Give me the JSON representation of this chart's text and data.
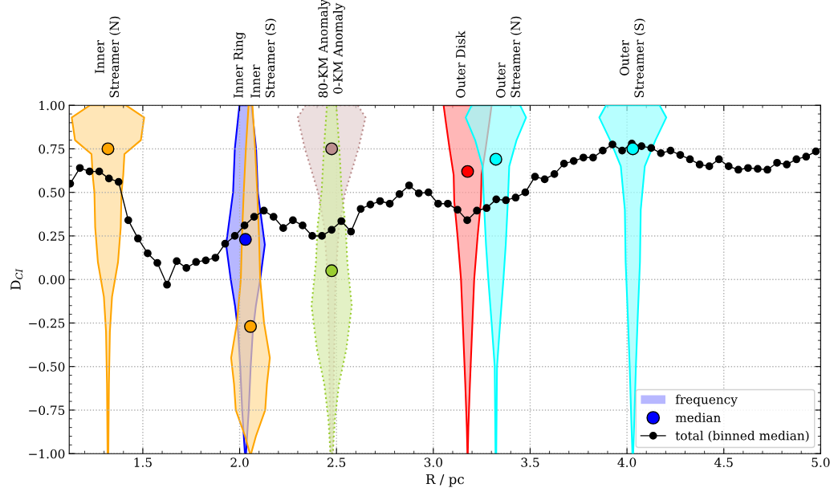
{
  "chart_data": {
    "type": "line",
    "xlabel": "R / pc",
    "ylabel": "D$_{CI}$",
    "xlim": [
      1.12,
      5.0
    ],
    "xticks": [
      1.5,
      {
        "value": 2.0,
        "label": "2.0"
      },
      2.5,
      {
        "value": 3.0,
        "label": "3.0"
      },
      3.5,
      {
        "value": 4.0,
        "label": "4.0"
      },
      4.5,
      {
        "value": 5.0,
        "label": "5.0"
      }
    ],
    "ylim": [
      -1.0,
      1.0
    ],
    "yticks": [
      {
        "value": -1.0,
        "label": "−1.00"
      },
      {
        "value": -0.75,
        "label": "−0.75"
      },
      {
        "value": -0.5,
        "label": "−0.50"
      },
      {
        "value": -0.25,
        "label": "−0.25"
      },
      {
        "value": 0.0,
        "label": "0.00"
      },
      {
        "value": 0.25,
        "label": "0.25"
      },
      {
        "value": 0.5,
        "label": "0.50"
      },
      {
        "value": 0.75,
        "label": "0.75"
      },
      {
        "value": 1.0,
        "label": "1.00"
      }
    ],
    "annotations": [
      "Inner\nStreamer (N)",
      "Inner Ring",
      "Inner\nStreamer (S)",
      "80-KM Anomaly\n0-KM Anomaly",
      "Outer Disk",
      "Outer\nStreamer (N)",
      "Outer\nStreamer (S)"
    ],
    "grid": true,
    "legend": "bottom right",
    "series": [
      {
        "type": "area",
        "color": "#ffa500",
        "line_style": "solid",
        "x": [
          1.413,
          1.507,
          1.49,
          1.405,
          1.399,
          1.39,
          1.386,
          1.372,
          1.341,
          1.33,
          1.325,
          1.322,
          1.318,
          1.315,
          1.31,
          1.299,
          1.268,
          1.254,
          1.25,
          1.241,
          1.235,
          1.15,
          1.133,
          1.227
        ],
        "values": [
          1.0,
          0.93,
          0.8,
          0.72,
          0.6,
          0.5,
          0.3,
          0.1,
          -0.1,
          -0.3,
          -0.6,
          -1.0,
          -1.0,
          -0.6,
          -0.3,
          -0.1,
          0.1,
          0.3,
          0.5,
          0.6,
          0.72,
          0.8,
          0.93,
          1.0
        ]
      },
      {
        "type": "area",
        "name": "frequency",
        "color": "#0000ff",
        "line_style": "solid",
        "x": [
          2.061,
          2.085,
          2.094,
          2.118,
          2.13,
          2.106,
          2.084,
          2.068,
          2.057,
          2.047,
          2.033,
          2.027,
          2.013,
          2.003,
          1.992,
          1.976,
          1.954,
          1.93,
          1.942,
          1.966,
          1.975,
          1.999
        ],
        "values": [
          1.0,
          0.75,
          0.5,
          0.3,
          0.2,
          0.0,
          -0.15,
          -0.3,
          -0.5,
          -0.75,
          -1.0,
          -1.0,
          -0.75,
          -0.5,
          -0.3,
          -0.15,
          0.0,
          0.2,
          0.3,
          0.5,
          0.75,
          1.0
        ]
      },
      {
        "type": "area",
        "color": "#ffa500",
        "line_style": "solid",
        "x": [
          2.066,
          2.08,
          2.091,
          2.1,
          2.106,
          2.126,
          2.156,
          2.141,
          2.132,
          2.084,
          2.059,
          2.053,
          2.028,
          1.98,
          1.971,
          1.956,
          1.986,
          2.006,
          2.012,
          2.021,
          2.032,
          2.046
        ],
        "values": [
          1.0,
          0.75,
          0.5,
          0.25,
          0.0,
          -0.25,
          -0.45,
          -0.6,
          -0.75,
          -0.9,
          -1.0,
          -1.0,
          -0.9,
          -0.75,
          -0.6,
          -0.45,
          -0.25,
          0.0,
          0.25,
          0.5,
          0.75,
          1.0
        ]
      },
      {
        "type": "area",
        "color": "#bc8f8f",
        "line_style": "dotted",
        "x": [
          2.61,
          2.65,
          2.613,
          2.545,
          2.513,
          2.495,
          2.487,
          2.481,
          2.469,
          2.463,
          2.455,
          2.437,
          2.405,
          2.337,
          2.3,
          2.34
        ],
        "values": [
          1.0,
          0.93,
          0.75,
          0.5,
          0.3,
          0.0,
          -0.5,
          -1.0,
          -1.0,
          -0.5,
          0.0,
          0.3,
          0.5,
          0.75,
          0.93,
          1.0
        ]
      },
      {
        "type": "area",
        "color": "#9acd32",
        "line_style": "dotted",
        "x": [
          2.499,
          2.515,
          2.527,
          2.548,
          2.556,
          2.579,
          2.551,
          2.513,
          2.492,
          2.481,
          2.469,
          2.458,
          2.437,
          2.399,
          2.371,
          2.394,
          2.402,
          2.423,
          2.435,
          2.451
        ],
        "values": [
          1.0,
          0.75,
          0.5,
          0.3,
          0.1,
          -0.15,
          -0.4,
          -0.6,
          -0.8,
          -1.0,
          -1.0,
          -0.8,
          -0.6,
          -0.4,
          -0.15,
          0.1,
          0.3,
          0.5,
          0.75,
          1.0
        ]
      },
      {
        "type": "area",
        "color": "#ff0000",
        "line_style": "solid",
        "x": [
          3.301,
          3.289,
          3.27,
          3.249,
          3.246,
          3.229,
          3.211,
          3.2,
          3.189,
          3.181,
          3.178,
          3.176,
          3.173,
          3.165,
          3.154,
          3.143,
          3.125,
          3.108,
          3.105,
          3.084,
          3.065,
          3.053
        ],
        "values": [
          1.0,
          0.9,
          0.75,
          0.6,
          0.45,
          0.25,
          0.0,
          -0.3,
          -0.6,
          -0.85,
          -1.0,
          -1.0,
          -0.85,
          -0.6,
          -0.3,
          0.0,
          0.25,
          0.45,
          0.6,
          0.75,
          0.9,
          1.0
        ]
      },
      {
        "type": "area",
        "color": "#00ffff",
        "line_style": "solid",
        "x": [
          3.448,
          3.479,
          3.43,
          3.392,
          3.385,
          3.374,
          3.362,
          3.345,
          3.329,
          3.325,
          3.321,
          3.317,
          3.301,
          3.284,
          3.272,
          3.261,
          3.254,
          3.216,
          3.167,
          3.198
        ],
        "values": [
          1.0,
          0.93,
          0.8,
          0.65,
          0.45,
          0.2,
          0.0,
          -0.25,
          -0.5,
          -1.0,
          -1.0,
          -0.5,
          -0.25,
          0.0,
          0.2,
          0.45,
          0.65,
          0.8,
          0.93,
          1.0
        ]
      },
      {
        "type": "area",
        "color": "#00ffff",
        "line_style": "solid",
        "x": [
          4.168,
          4.203,
          4.147,
          4.092,
          4.071,
          4.067,
          4.056,
          4.046,
          4.038,
          4.032,
          4.028,
          4.022,
          4.014,
          4.004,
          3.993,
          3.989,
          3.968,
          3.913,
          3.857,
          3.892
        ],
        "values": [
          1.0,
          0.93,
          0.8,
          0.65,
          0.4,
          0.1,
          -0.2,
          -0.5,
          -0.8,
          -1.0,
          -1.0,
          -0.8,
          -0.5,
          -0.2,
          0.1,
          0.4,
          0.65,
          0.8,
          0.93,
          1.0
        ]
      },
      {
        "type": "scatter",
        "marker": "circle",
        "color": "#ffa500",
        "x": [
          1.32
        ],
        "values": [
          0.75
        ]
      },
      {
        "type": "scatter",
        "marker": "circle",
        "name": "median",
        "color": "#0000ff",
        "x": [
          2.03
        ],
        "values": [
          0.23
        ]
      },
      {
        "type": "scatter",
        "marker": "circle",
        "color": "#ffa500",
        "x": [
          2.056
        ],
        "values": [
          -0.27
        ]
      },
      {
        "type": "scatter",
        "marker": "circle",
        "color": "#bc8f8f",
        "x": [
          2.475
        ],
        "values": [
          0.75
        ]
      },
      {
        "type": "scatter",
        "marker": "circle",
        "color": "#9acd32",
        "x": [
          2.475
        ],
        "values": [
          0.05
        ]
      },
      {
        "type": "scatter",
        "marker": "circle",
        "color": "#ff0000",
        "x": [
          3.177
        ],
        "values": [
          0.62
        ]
      },
      {
        "type": "scatter",
        "marker": "circle",
        "color": "#00ffff",
        "x": [
          3.323
        ],
        "values": [
          0.69
        ]
      },
      {
        "type": "scatter",
        "marker": "circle",
        "color": "#00ffff",
        "x": [
          4.03
        ],
        "values": [
          0.75
        ]
      },
      {
        "name": "total (binned median)",
        "color": "#000000",
        "marker": "circle",
        "line_style": "solid",
        "x": [
          1.125,
          1.175,
          1.225,
          1.275,
          1.325,
          1.375,
          1.425,
          1.475,
          1.525,
          1.575,
          1.625,
          1.675,
          1.725,
          1.775,
          1.825,
          1.875,
          1.925,
          1.975,
          2.025,
          2.075,
          2.125,
          2.175,
          2.225,
          2.275,
          2.325,
          2.375,
          2.425,
          2.475,
          2.525,
          2.575,
          2.625,
          2.675,
          2.725,
          2.775,
          2.825,
          2.875,
          2.925,
          2.975,
          3.025,
          3.075,
          3.125,
          3.175,
          3.225,
          3.275,
          3.325,
          3.375,
          3.425,
          3.475,
          3.525,
          3.575,
          3.625,
          3.675,
          3.725,
          3.775,
          3.825,
          3.875,
          3.925,
          3.975,
          4.025,
          4.075,
          4.125,
          4.175,
          4.225,
          4.275,
          4.325,
          4.375,
          4.425,
          4.475,
          4.525,
          4.575,
          4.625,
          4.675,
          4.725,
          4.775,
          4.825,
          4.875,
          4.925,
          4.975
        ],
        "values": [
          0.55,
          0.64,
          0.62,
          0.62,
          0.58,
          0.56,
          0.34,
          0.235,
          0.15,
          0.095,
          -0.03,
          0.105,
          0.066,
          0.1,
          0.11,
          0.125,
          0.205,
          0.25,
          0.31,
          0.36,
          0.395,
          0.36,
          0.295,
          0.34,
          0.31,
          0.25,
          0.25,
          0.285,
          0.335,
          0.275,
          0.405,
          0.43,
          0.45,
          0.435,
          0.49,
          0.54,
          0.495,
          0.5,
          0.435,
          0.435,
          0.4,
          0.34,
          0.395,
          0.41,
          0.46,
          0.455,
          0.47,
          0.5,
          0.59,
          0.575,
          0.605,
          0.665,
          0.68,
          0.7,
          0.7,
          0.74,
          0.775,
          0.74,
          0.78,
          0.765,
          0.755,
          0.725,
          0.74,
          0.715,
          0.69,
          0.66,
          0.65,
          0.69,
          0.65,
          0.63,
          0.64,
          0.635,
          0.63,
          0.67,
          0.66,
          0.69,
          0.705,
          0.735
        ]
      }
    ]
  }
}
